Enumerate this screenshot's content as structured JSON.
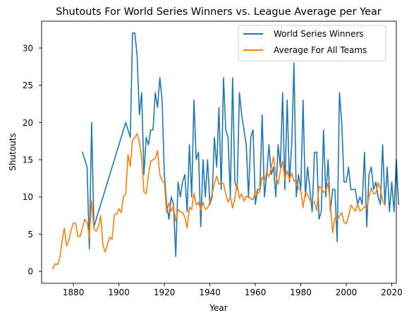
{
  "chart_data": {
    "type": "line",
    "title": "Shutouts For World Series Winners vs. League Average per Year",
    "xlabel": "Year",
    "ylabel": "Shutouts",
    "xlim": [
      1866,
      2022
    ],
    "ylim": [
      -1.6,
      33.6
    ],
    "xticks": [
      "1880",
      "1900",
      "1920",
      "1940",
      "1960",
      "1980",
      "2000",
      "2020"
    ],
    "yticks": [
      "0",
      "5",
      "10",
      "15",
      "20",
      "25",
      "30"
    ],
    "legend_position": "top-right",
    "series": [
      {
        "name": "World Series Winners",
        "color": "#1f77b4",
        "points": [
          [
            1884,
            16
          ],
          [
            1886,
            14
          ],
          [
            1887,
            3
          ],
          [
            1888,
            20
          ],
          [
            1889,
            6
          ],
          [
            1903,
            20
          ],
          [
            1904,
            19
          ],
          [
            1905,
            18
          ],
          [
            1906,
            32
          ],
          [
            1907,
            32
          ],
          [
            1908,
            29
          ],
          [
            1909,
            21
          ],
          [
            1910,
            24
          ],
          [
            1911,
            13
          ],
          [
            1912,
            18
          ],
          [
            1913,
            17
          ],
          [
            1914,
            19
          ],
          [
            1915,
            19
          ],
          [
            1916,
            24
          ],
          [
            1917,
            22
          ],
          [
            1918,
            26
          ],
          [
            1919,
            23
          ],
          [
            1920,
            13
          ],
          [
            1921,
            9
          ],
          [
            1922,
            7
          ],
          [
            1923,
            10
          ],
          [
            1924,
            9
          ],
          [
            1925,
            2
          ],
          [
            1926,
            12
          ],
          [
            1927,
            10
          ],
          [
            1928,
            12
          ],
          [
            1929,
            13
          ],
          [
            1930,
            8
          ],
          [
            1931,
            17
          ],
          [
            1932,
            10
          ],
          [
            1933,
            23
          ],
          [
            1934,
            15
          ],
          [
            1935,
            16
          ],
          [
            1936,
            6
          ],
          [
            1937,
            15
          ],
          [
            1938,
            10
          ],
          [
            1939,
            15
          ],
          [
            1940,
            9
          ],
          [
            1941,
            10
          ],
          [
            1942,
            18
          ],
          [
            1943,
            14
          ],
          [
            1944,
            22
          ],
          [
            1945,
            11
          ],
          [
            1946,
            26
          ],
          [
            1947,
            19
          ],
          [
            1948,
            18
          ],
          [
            1949,
            10
          ],
          [
            1950,
            26
          ],
          [
            1951,
            12
          ],
          [
            1952,
            11
          ],
          [
            1953,
            24
          ],
          [
            1954,
            21
          ],
          [
            1955,
            19
          ],
          [
            1956,
            17
          ],
          [
            1957,
            10
          ],
          [
            1958,
            18
          ],
          [
            1959,
            19
          ],
          [
            1960,
            9
          ],
          [
            1961,
            11
          ],
          [
            1962,
            11
          ],
          [
            1963,
            21
          ],
          [
            1964,
            10
          ],
          [
            1965,
            13
          ],
          [
            1966,
            17
          ],
          [
            1967,
            13
          ],
          [
            1968,
            14
          ],
          [
            1969,
            10
          ],
          [
            1970,
            17
          ],
          [
            1971,
            14
          ],
          [
            1972,
            24
          ],
          [
            1973,
            11
          ],
          [
            1974,
            23
          ],
          [
            1975,
            12
          ],
          [
            1976,
            17
          ],
          [
            1977,
            28
          ],
          [
            1978,
            10
          ],
          [
            1979,
            13
          ],
          [
            1980,
            11
          ],
          [
            1981,
            23
          ],
          [
            1982,
            10
          ],
          [
            1983,
            14
          ],
          [
            1984,
            11
          ],
          [
            1985,
            8
          ],
          [
            1986,
            16
          ],
          [
            1987,
            16
          ],
          [
            1988,
            7
          ],
          [
            1989,
            8
          ],
          [
            1990,
            19
          ],
          [
            1991,
            10
          ],
          [
            1992,
            15
          ],
          [
            1993,
            8
          ],
          [
            1994,
            11
          ],
          [
            1995,
            11
          ],
          [
            1996,
            4
          ],
          [
            1997,
            24
          ],
          [
            1998,
            20
          ],
          [
            1999,
            12
          ],
          [
            2000,
            12
          ],
          [
            2001,
            14
          ],
          [
            2002,
            11
          ],
          [
            2003,
            11
          ],
          [
            2004,
            11
          ],
          [
            2005,
            9
          ],
          [
            2006,
            10
          ],
          [
            2007,
            9
          ],
          [
            2008,
            16
          ],
          [
            2009,
            6
          ],
          [
            2010,
            13
          ],
          [
            2011,
            14
          ],
          [
            2012,
            11
          ],
          [
            2013,
            12
          ],
          [
            2014,
            10
          ],
          [
            2015,
            9
          ],
          [
            2016,
            17
          ],
          [
            2017,
            9
          ],
          [
            2018,
            14
          ],
          [
            2019,
            8
          ],
          [
            2020,
            12
          ],
          [
            2021,
            8
          ],
          [
            2022,
            15
          ],
          [
            2023,
            9
          ]
        ]
      },
      {
        "name": "Average For All Teams",
        "color": "#ff7f0e",
        "points": [
          [
            1871,
            0.4
          ],
          [
            1872,
            1.0
          ],
          [
            1873,
            0.9
          ],
          [
            1874,
            1.8
          ],
          [
            1875,
            4.0
          ],
          [
            1876,
            5.8
          ],
          [
            1877,
            3.4
          ],
          [
            1878,
            4.2
          ],
          [
            1879,
            5.6
          ],
          [
            1880,
            6.5
          ],
          [
            1881,
            6.4
          ],
          [
            1882,
            4.7
          ],
          [
            1883,
            4.7
          ],
          [
            1884,
            5.9
          ],
          [
            1885,
            7.0
          ],
          [
            1886,
            6.6
          ],
          [
            1887,
            4.6
          ],
          [
            1888,
            9.5
          ],
          [
            1889,
            5.7
          ],
          [
            1890,
            5.4
          ],
          [
            1891,
            6.0
          ],
          [
            1892,
            7.5
          ],
          [
            1893,
            3.5
          ],
          [
            1894,
            2.6
          ],
          [
            1895,
            3.7
          ],
          [
            1896,
            4.6
          ],
          [
            1897,
            4.3
          ],
          [
            1898,
            7.6
          ],
          [
            1899,
            7.7
          ],
          [
            1900,
            8.4
          ],
          [
            1901,
            7.9
          ],
          [
            1902,
            10.0
          ],
          [
            1903,
            10.4
          ],
          [
            1904,
            15.7
          ],
          [
            1905,
            14.1
          ],
          [
            1906,
            17.6
          ],
          [
            1907,
            18.0
          ],
          [
            1908,
            18.5
          ],
          [
            1909,
            17.4
          ],
          [
            1910,
            15.2
          ],
          [
            1911,
            10.7
          ],
          [
            1912,
            10.4
          ],
          [
            1913,
            13.0
          ],
          [
            1914,
            14.8
          ],
          [
            1915,
            15.0
          ],
          [
            1916,
            15.2
          ],
          [
            1917,
            16.2
          ],
          [
            1918,
            13.0
          ],
          [
            1919,
            12.2
          ],
          [
            1920,
            11.9
          ],
          [
            1921,
            7.9
          ],
          [
            1922,
            9.2
          ],
          [
            1923,
            8.1
          ],
          [
            1924,
            8.8
          ],
          [
            1925,
            6.7
          ],
          [
            1926,
            8.3
          ],
          [
            1927,
            8.0
          ],
          [
            1928,
            7.9
          ],
          [
            1929,
            7.3
          ],
          [
            1930,
            5.8
          ],
          [
            1931,
            8.6
          ],
          [
            1932,
            8.3
          ],
          [
            1933,
            10.5
          ],
          [
            1934,
            8.9
          ],
          [
            1935,
            9.3
          ],
          [
            1936,
            8.2
          ],
          [
            1937,
            9.3
          ],
          [
            1938,
            8.3
          ],
          [
            1939,
            8.5
          ],
          [
            1940,
            9.3
          ],
          [
            1941,
            10.4
          ],
          [
            1942,
            11.8
          ],
          [
            1943,
            12.8
          ],
          [
            1944,
            11.7
          ],
          [
            1945,
            11.9
          ],
          [
            1946,
            11.8
          ],
          [
            1947,
            10.4
          ],
          [
            1948,
            9.3
          ],
          [
            1949,
            10.0
          ],
          [
            1950,
            8.5
          ],
          [
            1951,
            9.8
          ],
          [
            1952,
            11.7
          ],
          [
            1953,
            9.8
          ],
          [
            1954,
            10.4
          ],
          [
            1955,
            9.4
          ],
          [
            1956,
            10.1
          ],
          [
            1957,
            9.9
          ],
          [
            1958,
            9.8
          ],
          [
            1959,
            9.6
          ],
          [
            1960,
            10.8
          ],
          [
            1961,
            10.4
          ],
          [
            1962,
            10.8
          ],
          [
            1963,
            12.7
          ],
          [
            1964,
            12.1
          ],
          [
            1965,
            13.4
          ],
          [
            1966,
            12.7
          ],
          [
            1967,
            13.9
          ],
          [
            1968,
            15.4
          ],
          [
            1969,
            12.9
          ],
          [
            1970,
            11.7
          ],
          [
            1971,
            13.5
          ],
          [
            1972,
            14.8
          ],
          [
            1973,
            12.3
          ],
          [
            1974,
            13.5
          ],
          [
            1975,
            12.3
          ],
          [
            1976,
            13.2
          ],
          [
            1977,
            12.1
          ],
          [
            1978,
            12.4
          ],
          [
            1979,
            11.1
          ],
          [
            1980,
            10.8
          ],
          [
            1981,
            8.6
          ],
          [
            1982,
            10.6
          ],
          [
            1983,
            10.3
          ],
          [
            1984,
            9.5
          ],
          [
            1985,
            9.5
          ],
          [
            1986,
            9.3
          ],
          [
            1987,
            8.2
          ],
          [
            1988,
            11.4
          ],
          [
            1989,
            11.2
          ],
          [
            1990,
            10.6
          ],
          [
            1991,
            10.8
          ],
          [
            1992,
            11.8
          ],
          [
            1993,
            9.0
          ],
          [
            1994,
            5.2
          ],
          [
            1995,
            7.2
          ],
          [
            1996,
            6.9
          ],
          [
            1997,
            7.4
          ],
          [
            1998,
            7.9
          ],
          [
            1999,
            6.6
          ],
          [
            2000,
            6.4
          ],
          [
            2001,
            7.4
          ],
          [
            2002,
            8.9
          ],
          [
            2003,
            8.5
          ],
          [
            2004,
            8.1
          ],
          [
            2005,
            9.1
          ],
          [
            2006,
            8.1
          ],
          [
            2007,
            8.3
          ],
          [
            2008,
            8.7
          ],
          [
            2009,
            8.4
          ],
          [
            2010,
            10.1
          ],
          [
            2011,
            11.2
          ],
          [
            2012,
            10.4
          ],
          [
            2013,
            10.5
          ],
          [
            2014,
            11.9
          ],
          [
            2015,
            11.1
          ],
          [
            2016,
            9.5
          ],
          [
            2017,
            8.9
          ]
        ]
      }
    ]
  }
}
